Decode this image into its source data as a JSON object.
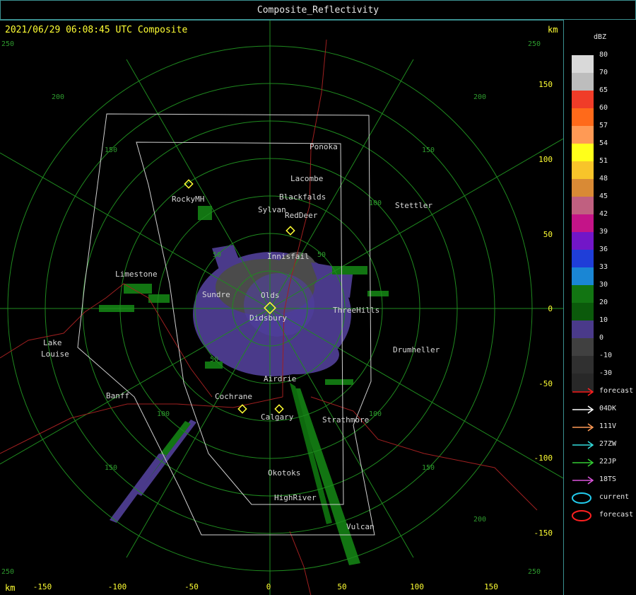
{
  "window": {
    "title": "Composite_Reflectivity"
  },
  "header": {
    "timestamp": "2021/06/29 06:08:45 UTC Composite",
    "km_top": "km",
    "km_bottom": "km"
  },
  "axes": {
    "y_ticks": [
      "150",
      "100",
      "50",
      "0",
      "-50",
      "-100",
      "-150"
    ],
    "x_ticks": [
      "-150",
      "-100",
      "-50",
      "0",
      "50",
      "100",
      "150"
    ]
  },
  "ring_labels": {
    "r250": "250",
    "r200": "200",
    "r150": "150",
    "r100": "100",
    "r50": "50"
  },
  "cities": [
    {
      "name": "Ponoka"
    },
    {
      "name": "Lacombe"
    },
    {
      "name": "Blackfalds"
    },
    {
      "name": "RockyMH"
    },
    {
      "name": "Sylvan"
    },
    {
      "name": "RedDeer"
    },
    {
      "name": "Stettler"
    },
    {
      "name": "Innisfail"
    },
    {
      "name": "Limestone"
    },
    {
      "name": "Sundre"
    },
    {
      "name": "Olds"
    },
    {
      "name": "Didsbury"
    },
    {
      "name": "ThreeHills"
    },
    {
      "name": "Lake"
    },
    {
      "name": "Louise"
    },
    {
      "name": "Drumheller"
    },
    {
      "name": "Airdrie"
    },
    {
      "name": "Banff"
    },
    {
      "name": "Cochrane"
    },
    {
      "name": "Calgary"
    },
    {
      "name": "Strathmore"
    },
    {
      "name": "Okotoks"
    },
    {
      "name": "HighRiver"
    },
    {
      "name": "Vulcan"
    }
  ],
  "legend": {
    "unit": "dBZ",
    "scale": [
      {
        "label": "80",
        "color": "#d9d9d9"
      },
      {
        "label": "70",
        "color": "#bdbdbd"
      },
      {
        "label": "65",
        "color": "#f03c28"
      },
      {
        "label": "60",
        "color": "#ff6a1a"
      },
      {
        "label": "57",
        "color": "#ff9a55"
      },
      {
        "label": "54",
        "color": "#ffff1a"
      },
      {
        "label": "51",
        "color": "#f8c42a"
      },
      {
        "label": "48",
        "color": "#d98a35"
      },
      {
        "label": "45",
        "color": "#c06080"
      },
      {
        "label": "42",
        "color": "#c41488"
      },
      {
        "label": "39",
        "color": "#7216c8"
      },
      {
        "label": "36",
        "color": "#1f3ed8"
      },
      {
        "label": "33",
        "color": "#1a86d4"
      },
      {
        "label": "30",
        "color": "#127512"
      },
      {
        "label": "20",
        "color": "#0b5a0b"
      },
      {
        "label": "10",
        "color": "#4a3a8a"
      },
      {
        "label": "0",
        "color": "#404040"
      },
      {
        "label": "-10",
        "color": "#303030"
      },
      {
        "label": "-30",
        "color": "#282828"
      }
    ],
    "track_keys": [
      {
        "label": "forecast",
        "color": "#ff2020",
        "kind": "arrow"
      },
      {
        "label": "04DK",
        "color": "#ffffff",
        "kind": "arrow"
      },
      {
        "label": "111V",
        "color": "#ff9a55",
        "kind": "arrow"
      },
      {
        "label": "27ZW",
        "color": "#33dddd",
        "kind": "arrow"
      },
      {
        "label": "22JP",
        "color": "#33cc33",
        "kind": "arrow"
      },
      {
        "label": "18TS",
        "color": "#dd55dd",
        "kind": "arrow"
      },
      {
        "label": "current",
        "color": "#22ccee",
        "kind": "ellipse"
      },
      {
        "label": "forecast",
        "color": "#ff2020",
        "kind": "ellipse"
      }
    ]
  }
}
